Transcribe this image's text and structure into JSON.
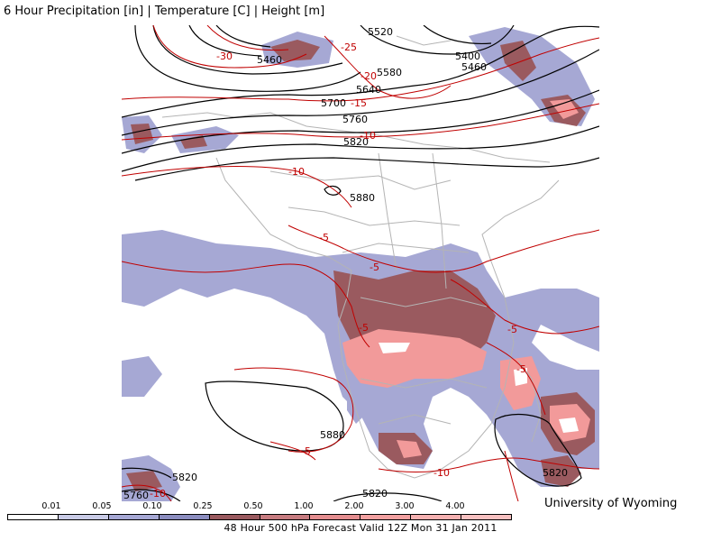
{
  "title": "6 Hour Precipitation [in] | Temperature [C] | Height [m]",
  "credit": "University of Wyoming",
  "footer": "48 Hour 500 hPa Forecast Valid 12Z Mon 31 Jan 2011",
  "colors": {
    "precip_light": "#bfc0e0",
    "precip_mid": "#9e9fcf",
    "precip_purple": "#9a8fb5",
    "precip_brown": "#9a5a5f",
    "precip_pink": "#f29a9a",
    "precip_white": "#ffffff",
    "height_contour": "#000000",
    "temp_contour": "#c00000",
    "borders": "#b4b4b4"
  },
  "legend": {
    "labels": [
      "0.01",
      "0.05",
      "0.10",
      "0.25",
      "0.50",
      "1.00",
      "2.00",
      "3.00",
      "4.00"
    ],
    "bins": [
      "#ffffff",
      "#c9cbe6",
      "#a6a8d4",
      "#8b8dbf",
      "#9a5a5f",
      "#c77c80",
      "#e48d8f",
      "#f2a0a0",
      "#f4b0b0",
      "#f7c0c0"
    ]
  },
  "height_labels": [
    "5460",
    "5520",
    "5580",
    "5640",
    "5700",
    "5760",
    "5820",
    "5880",
    "5400",
    "5460",
    "5880",
    "5820",
    "5760",
    "5820",
    "5820"
  ],
  "temp_labels": [
    "-30",
    "-25",
    "-20",
    "-15",
    "-10",
    "-10",
    "-5",
    "-5",
    "-5",
    "-5",
    "-5",
    "-5",
    "-10",
    "-10"
  ]
}
